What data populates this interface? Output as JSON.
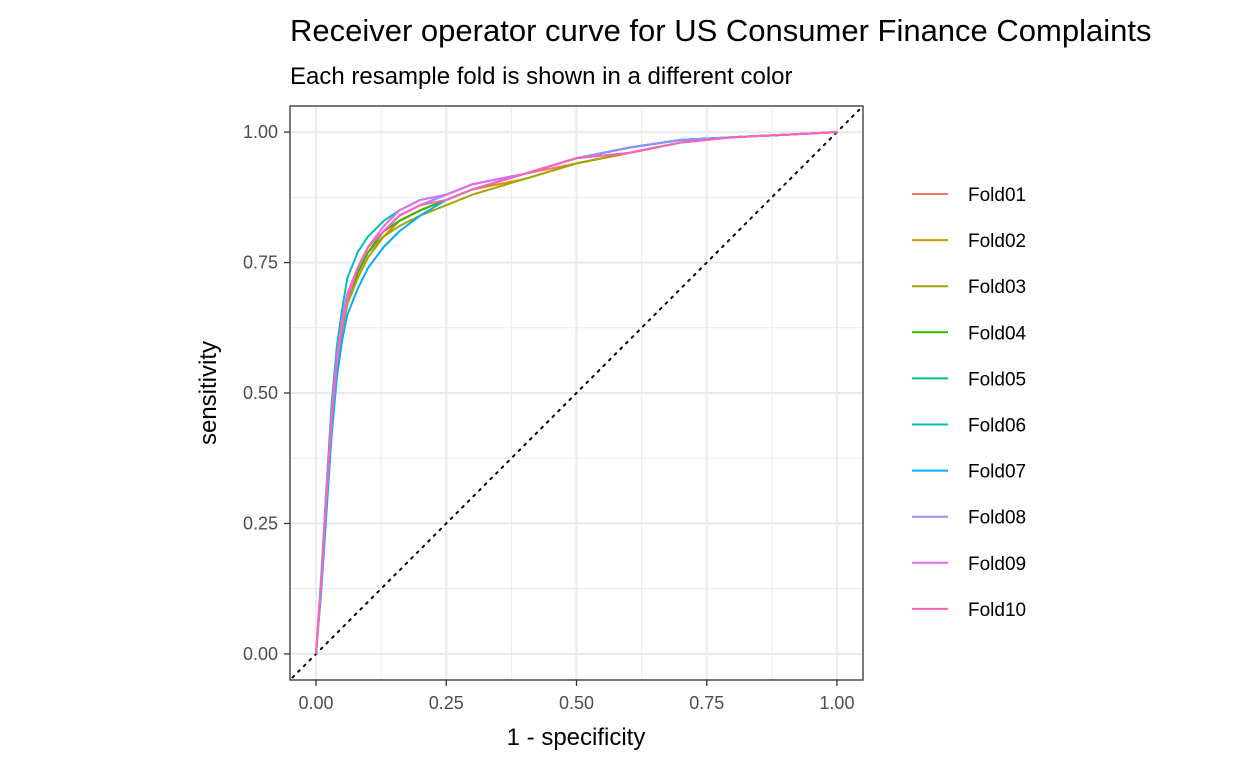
{
  "chart_data": {
    "type": "line",
    "title": "Receiver operator curve for US Consumer Finance Complaints",
    "subtitle": "Each resample fold is shown in a different color",
    "xlabel": "1 - specificity",
    "ylabel": "sensitivity",
    "xlim": [
      -0.05,
      1.05
    ],
    "ylim": [
      -0.05,
      1.05
    ],
    "x_ticks": [
      "0.00",
      "0.25",
      "0.50",
      "0.75",
      "1.00"
    ],
    "y_ticks": [
      "0.00",
      "0.25",
      "0.50",
      "0.75",
      "1.00"
    ],
    "grid": true,
    "legend_position": "right",
    "reference_line": {
      "style": "dotted",
      "from": [
        0,
        0
      ],
      "to": [
        1,
        1
      ]
    },
    "series": [
      {
        "name": "Fold01",
        "color": "#F8766D",
        "x": [
          0,
          0.01,
          0.02,
          0.03,
          0.04,
          0.05,
          0.06,
          0.08,
          0.1,
          0.13,
          0.16,
          0.2,
          0.25,
          0.3,
          0.4,
          0.5,
          0.6,
          0.7,
          0.8,
          0.9,
          1.0
        ],
        "y": [
          0,
          0.14,
          0.3,
          0.45,
          0.56,
          0.63,
          0.68,
          0.73,
          0.77,
          0.8,
          0.83,
          0.85,
          0.87,
          0.89,
          0.92,
          0.94,
          0.96,
          0.98,
          0.99,
          0.995,
          1.0
        ]
      },
      {
        "name": "Fold02",
        "color": "#D89000",
        "x": [
          0,
          0.01,
          0.02,
          0.03,
          0.04,
          0.05,
          0.06,
          0.08,
          0.1,
          0.13,
          0.16,
          0.2,
          0.25,
          0.3,
          0.4,
          0.5,
          0.6,
          0.7,
          0.8,
          0.9,
          1.0
        ],
        "y": [
          0,
          0.13,
          0.29,
          0.44,
          0.55,
          0.62,
          0.67,
          0.73,
          0.77,
          0.8,
          0.83,
          0.85,
          0.87,
          0.89,
          0.91,
          0.94,
          0.96,
          0.98,
          0.99,
          0.995,
          1.0
        ]
      },
      {
        "name": "Fold03",
        "color": "#A3A500",
        "x": [
          0,
          0.01,
          0.02,
          0.03,
          0.04,
          0.05,
          0.06,
          0.08,
          0.1,
          0.13,
          0.16,
          0.2,
          0.25,
          0.3,
          0.4,
          0.5,
          0.6,
          0.7,
          0.8,
          0.9,
          1.0
        ],
        "y": [
          0,
          0.13,
          0.29,
          0.44,
          0.55,
          0.62,
          0.67,
          0.72,
          0.76,
          0.8,
          0.82,
          0.84,
          0.86,
          0.88,
          0.91,
          0.94,
          0.96,
          0.98,
          0.99,
          0.995,
          1.0
        ]
      },
      {
        "name": "Fold04",
        "color": "#39B600",
        "x": [
          0,
          0.01,
          0.02,
          0.03,
          0.04,
          0.05,
          0.06,
          0.08,
          0.1,
          0.13,
          0.16,
          0.2,
          0.25,
          0.3,
          0.4,
          0.5,
          0.6,
          0.7,
          0.8,
          0.9,
          1.0
        ],
        "y": [
          0,
          0.14,
          0.3,
          0.45,
          0.56,
          0.63,
          0.68,
          0.73,
          0.77,
          0.81,
          0.83,
          0.85,
          0.87,
          0.89,
          0.92,
          0.95,
          0.97,
          0.985,
          0.99,
          0.995,
          1.0
        ]
      },
      {
        "name": "Fold05",
        "color": "#00BF7D",
        "x": [
          0,
          0.01,
          0.02,
          0.03,
          0.04,
          0.05,
          0.06,
          0.08,
          0.1,
          0.13,
          0.16,
          0.2,
          0.25,
          0.3,
          0.4,
          0.5,
          0.6,
          0.7,
          0.8,
          0.9,
          1.0
        ],
        "y": [
          0,
          0.14,
          0.31,
          0.46,
          0.57,
          0.64,
          0.69,
          0.74,
          0.78,
          0.81,
          0.84,
          0.86,
          0.88,
          0.9,
          0.92,
          0.95,
          0.97,
          0.985,
          0.99,
          0.995,
          1.0
        ]
      },
      {
        "name": "Fold06",
        "color": "#00BFC4",
        "x": [
          0,
          0.01,
          0.02,
          0.03,
          0.04,
          0.05,
          0.06,
          0.08,
          0.1,
          0.13,
          0.16,
          0.2,
          0.25,
          0.3,
          0.4,
          0.5,
          0.6,
          0.7,
          0.8,
          0.9,
          1.0
        ],
        "y": [
          0,
          0.15,
          0.32,
          0.48,
          0.59,
          0.66,
          0.72,
          0.77,
          0.8,
          0.83,
          0.85,
          0.87,
          0.88,
          0.9,
          0.92,
          0.95,
          0.97,
          0.985,
          0.99,
          0.995,
          1.0
        ]
      },
      {
        "name": "Fold07",
        "color": "#00B0F6",
        "x": [
          0,
          0.01,
          0.02,
          0.03,
          0.04,
          0.05,
          0.06,
          0.08,
          0.1,
          0.13,
          0.16,
          0.2,
          0.25,
          0.3,
          0.4,
          0.5,
          0.6,
          0.7,
          0.8,
          0.9,
          1.0
        ],
        "y": [
          0,
          0.12,
          0.27,
          0.42,
          0.53,
          0.6,
          0.65,
          0.7,
          0.74,
          0.78,
          0.81,
          0.84,
          0.87,
          0.89,
          0.92,
          0.95,
          0.97,
          0.985,
          0.99,
          0.995,
          1.0
        ]
      },
      {
        "name": "Fold08",
        "color": "#9590FF",
        "x": [
          0,
          0.01,
          0.02,
          0.03,
          0.04,
          0.05,
          0.06,
          0.08,
          0.1,
          0.13,
          0.16,
          0.2,
          0.25,
          0.3,
          0.4,
          0.5,
          0.6,
          0.7,
          0.8,
          0.9,
          1.0
        ],
        "y": [
          0,
          0.14,
          0.3,
          0.45,
          0.56,
          0.63,
          0.68,
          0.74,
          0.78,
          0.81,
          0.84,
          0.86,
          0.88,
          0.9,
          0.92,
          0.95,
          0.97,
          0.985,
          0.99,
          0.995,
          1.0
        ]
      },
      {
        "name": "Fold09",
        "color": "#E76BF3",
        "x": [
          0,
          0.01,
          0.02,
          0.03,
          0.04,
          0.05,
          0.06,
          0.08,
          0.1,
          0.13,
          0.16,
          0.2,
          0.25,
          0.3,
          0.4,
          0.5,
          0.6,
          0.7,
          0.8,
          0.9,
          1.0
        ],
        "y": [
          0,
          0.14,
          0.31,
          0.46,
          0.57,
          0.64,
          0.69,
          0.74,
          0.78,
          0.82,
          0.85,
          0.87,
          0.88,
          0.9,
          0.92,
          0.95,
          0.96,
          0.98,
          0.99,
          0.995,
          1.0
        ]
      },
      {
        "name": "Fold10",
        "color": "#FF62BC",
        "x": [
          0,
          0.01,
          0.02,
          0.03,
          0.04,
          0.05,
          0.06,
          0.08,
          0.1,
          0.13,
          0.16,
          0.2,
          0.25,
          0.3,
          0.4,
          0.5,
          0.6,
          0.7,
          0.8,
          0.9,
          1.0
        ],
        "y": [
          0,
          0.14,
          0.3,
          0.45,
          0.56,
          0.63,
          0.68,
          0.74,
          0.78,
          0.81,
          0.84,
          0.86,
          0.87,
          0.89,
          0.92,
          0.95,
          0.96,
          0.98,
          0.99,
          0.995,
          1.0
        ]
      }
    ]
  }
}
